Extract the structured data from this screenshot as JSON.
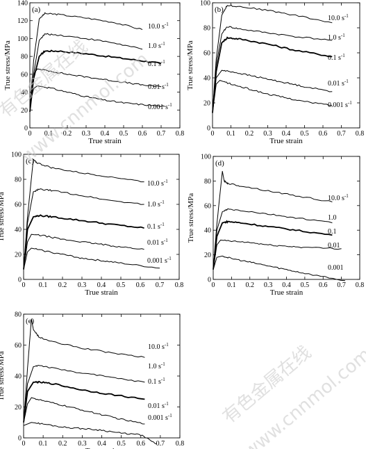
{
  "chart_data": [
    {
      "type": "line",
      "panel_label": "(a)",
      "xlabel": "True strain",
      "ylabel": "True stress/MPa",
      "xlim": [
        0,
        0.8
      ],
      "ylim": [
        0,
        140
      ],
      "xticks": [
        "0",
        "0.1",
        "0.2",
        "0.3",
        "0.4",
        "0.5",
        "0.6",
        "0.7",
        "0.8"
      ],
      "yticks": [
        "0",
        "20",
        "40",
        "60",
        "80",
        "100",
        "120",
        "140"
      ],
      "series": [
        {
          "name": "10.0 s",
          "unit_sup": "-1",
          "x": [
            0.0,
            0.02,
            0.05,
            0.08,
            0.15,
            0.3,
            0.45,
            0.6
          ],
          "y": [
            22,
            75,
            122,
            128,
            127,
            123,
            118,
            110
          ]
        },
        {
          "name": "1.0 s",
          "unit_sup": "-1",
          "x": [
            0.0,
            0.02,
            0.05,
            0.08,
            0.15,
            0.3,
            0.45,
            0.6
          ],
          "y": [
            20,
            60,
            98,
            105,
            104,
            100,
            95,
            88
          ]
        },
        {
          "name": "0.1 s",
          "unit_sup": "-1",
          "x": [
            0.0,
            0.02,
            0.05,
            0.08,
            0.15,
            0.3,
            0.45,
            0.6,
            0.7
          ],
          "y": [
            18,
            55,
            80,
            86,
            86,
            83,
            79,
            75,
            72
          ]
        },
        {
          "name": "0.01 s",
          "unit_sup": "-1",
          "x": [
            0.0,
            0.02,
            0.04,
            0.1,
            0.2,
            0.3,
            0.4,
            0.5,
            0.6,
            0.7
          ],
          "y": [
            20,
            60,
            66,
            64,
            60,
            57,
            54,
            51,
            48,
            46
          ]
        },
        {
          "name": "0.001 s",
          "unit_sup": "-1",
          "x": [
            0.0,
            0.02,
            0.04,
            0.1,
            0.2,
            0.3,
            0.4,
            0.5,
            0.6,
            0.72
          ],
          "y": [
            25,
            44,
            47,
            45,
            40,
            35,
            31,
            28,
            26,
            24
          ]
        }
      ]
    },
    {
      "type": "line",
      "panel_label": "(b)",
      "xlabel": "True strain",
      "ylabel": "True stress/MPa",
      "xlim": [
        0,
        0.8
      ],
      "ylim": [
        0,
        100
      ],
      "xticks": [
        "0",
        "0.1",
        "0.2",
        "0.3",
        "0.4",
        "0.5",
        "0.6",
        "0.7",
        "0.8"
      ],
      "yticks": [
        "0",
        "20",
        "40",
        "60",
        "80",
        "100"
      ],
      "series": [
        {
          "name": "10.0 s",
          "unit_sup": "-1",
          "x": [
            0.0,
            0.02,
            0.05,
            0.08,
            0.15,
            0.3,
            0.45,
            0.65
          ],
          "y": [
            12,
            55,
            90,
            98,
            97,
            94,
            90,
            84
          ]
        },
        {
          "name": "1.0 s",
          "unit_sup": "-1",
          "x": [
            0.0,
            0.02,
            0.05,
            0.08,
            0.15,
            0.3,
            0.45,
            0.65
          ],
          "y": [
            12,
            50,
            75,
            81,
            79,
            76,
            73,
            70
          ]
        },
        {
          "name": "0.1 s",
          "unit_sup": "-1",
          "x": [
            0.0,
            0.02,
            0.05,
            0.08,
            0.15,
            0.3,
            0.45,
            0.65
          ],
          "y": [
            12,
            45,
            68,
            72,
            71,
            67,
            62,
            57
          ]
        },
        {
          "name": "0.01 s",
          "unit_sup": "-1",
          "x": [
            0.0,
            0.02,
            0.05,
            0.1,
            0.2,
            0.3,
            0.4,
            0.5,
            0.65
          ],
          "y": [
            12,
            40,
            46,
            45,
            42,
            39,
            36,
            33,
            29
          ]
        },
        {
          "name": "0.001 s",
          "unit_sup": "-1",
          "x": [
            0.0,
            0.02,
            0.04,
            0.1,
            0.2,
            0.3,
            0.4,
            0.5,
            0.65
          ],
          "y": [
            12,
            35,
            38,
            35,
            31,
            27,
            24,
            21,
            18
          ]
        }
      ]
    },
    {
      "type": "line",
      "panel_label": "(c)",
      "xlabel": "True strain",
      "ylabel": "True stress/MPa",
      "xlim": [
        0,
        0.8
      ],
      "ylim": [
        0,
        100
      ],
      "xticks": [
        "0",
        "0.1",
        "0.2",
        "0.3",
        "0.4",
        "0.5",
        "0.6",
        "0.7",
        "0.8"
      ],
      "yticks": [
        "0",
        "20",
        "40",
        "60",
        "80",
        "100"
      ],
      "series": [
        {
          "name": "10.0 s",
          "unit_sup": "-1",
          "x": [
            0.0,
            0.02,
            0.05,
            0.07,
            0.15,
            0.3,
            0.45,
            0.62
          ],
          "y": [
            8,
            50,
            96,
            93,
            89,
            85,
            82,
            78
          ]
        },
        {
          "name": "1.0 s",
          "unit_sup": "-1",
          "x": [
            0.0,
            0.02,
            0.05,
            0.08,
            0.15,
            0.3,
            0.45,
            0.62
          ],
          "y": [
            8,
            45,
            70,
            72,
            71,
            67,
            63,
            60
          ]
        },
        {
          "name": "0.1 s",
          "unit_sup": "-1",
          "x": [
            0.0,
            0.02,
            0.05,
            0.08,
            0.15,
            0.3,
            0.45,
            0.62
          ],
          "y": [
            8,
            40,
            50,
            51,
            50,
            47,
            44,
            41
          ]
        },
        {
          "name": "0.01 s",
          "unit_sup": "-1",
          "x": [
            0.0,
            0.02,
            0.04,
            0.1,
            0.2,
            0.3,
            0.4,
            0.5,
            0.62
          ],
          "y": [
            8,
            30,
            36,
            35,
            32,
            30,
            28,
            26,
            24
          ]
        },
        {
          "name": "0.001 s",
          "unit_sup": "-1",
          "x": [
            0.0,
            0.02,
            0.04,
            0.1,
            0.2,
            0.3,
            0.4,
            0.5,
            0.7
          ],
          "y": [
            8,
            22,
            25,
            23,
            20,
            17,
            15,
            13,
            9
          ]
        }
      ]
    },
    {
      "type": "line",
      "panel_label": "(d)",
      "xlabel": "True strain",
      "ylabel": "True stress/MPa",
      "xlim": [
        0,
        0.8
      ],
      "ylim": [
        0,
        100
      ],
      "xticks": [
        "0",
        "0.1",
        "0.2",
        "0.3",
        "0.4",
        "0.5",
        "0.6",
        "0.7",
        "0.8"
      ],
      "yticks": [
        "0",
        "20",
        "40",
        "60",
        "80",
        "100"
      ],
      "series": [
        {
          "name": "10.0 s",
          "unit_sup": "-1",
          "x": [
            0.0,
            0.02,
            0.05,
            0.06,
            0.08,
            0.15,
            0.3,
            0.45,
            0.65
          ],
          "y": [
            8,
            45,
            88,
            80,
            78,
            76,
            72,
            68,
            63
          ]
        },
        {
          "name": "1.0",
          "unit_sup": "",
          "x": [
            0.0,
            0.02,
            0.05,
            0.08,
            0.15,
            0.3,
            0.45,
            0.65
          ],
          "y": [
            8,
            40,
            55,
            57,
            56,
            53,
            50,
            46
          ]
        },
        {
          "name": "0.1",
          "unit_sup": "",
          "x": [
            0.0,
            0.02,
            0.05,
            0.08,
            0.15,
            0.3,
            0.45,
            0.65
          ],
          "y": [
            8,
            35,
            46,
            47,
            46,
            43,
            40,
            36
          ]
        },
        {
          "name": "0.01",
          "unit_sup": "",
          "x": [
            0.0,
            0.02,
            0.04,
            0.1,
            0.2,
            0.3,
            0.4,
            0.5,
            0.7
          ],
          "y": [
            8,
            28,
            32,
            31,
            30,
            28,
            27,
            26,
            25
          ]
        },
        {
          "name": "0.001",
          "unit_sup": "",
          "x": [
            0.0,
            0.02,
            0.05,
            0.1,
            0.2,
            0.3,
            0.4,
            0.5,
            0.72
          ],
          "y": [
            8,
            18,
            19,
            17,
            14,
            11,
            8,
            5,
            -1
          ]
        }
      ]
    },
    {
      "type": "line",
      "panel_label": "(e)",
      "xlabel": "True strain",
      "ylabel": "True stress/MPa",
      "xlim": [
        0,
        0.8
      ],
      "ylim": [
        0,
        80
      ],
      "xticks": [
        "0",
        "0.1",
        "0.2",
        "0.3",
        "0.4",
        "0.5",
        "0.6",
        "0.7",
        "0.8"
      ],
      "yticks": [
        "0",
        "20",
        "40",
        "60",
        "80"
      ],
      "series": [
        {
          "name": "10.0 s",
          "unit_sup": "-1",
          "x": [
            0.0,
            0.02,
            0.04,
            0.05,
            0.08,
            0.15,
            0.3,
            0.45,
            0.62
          ],
          "y": [
            10,
            45,
            77,
            70,
            65,
            62,
            58,
            55,
            52
          ]
        },
        {
          "name": "1.0 s",
          "unit_sup": "-1",
          "x": [
            0.0,
            0.02,
            0.05,
            0.08,
            0.15,
            0.3,
            0.45,
            0.62
          ],
          "y": [
            10,
            35,
            46,
            47,
            45,
            42,
            39,
            36
          ]
        },
        {
          "name": "0.1 s",
          "unit_sup": "-1",
          "x": [
            0.0,
            0.02,
            0.05,
            0.08,
            0.15,
            0.3,
            0.45,
            0.62
          ],
          "y": [
            10,
            30,
            36,
            36,
            35,
            31,
            28,
            25
          ]
        },
        {
          "name": "0.01 s",
          "unit_sup": "-1",
          "x": [
            0.0,
            0.02,
            0.04,
            0.1,
            0.2,
            0.3,
            0.4,
            0.5,
            0.62
          ],
          "y": [
            10,
            22,
            26,
            24,
            21,
            18,
            15,
            12,
            9
          ]
        },
        {
          "name": "0.001 s",
          "unit_sup": "-1",
          "x": [
            0.0,
            0.02,
            0.04,
            0.1,
            0.2,
            0.3,
            0.4,
            0.5,
            0.6,
            0.68
          ],
          "y": [
            8,
            9,
            10,
            9,
            7,
            6,
            5,
            3,
            2,
            -4
          ]
        }
      ]
    }
  ],
  "watermark": {
    "text_cn": "有色金属在线",
    "text_url": "www.cnnmol.com"
  }
}
